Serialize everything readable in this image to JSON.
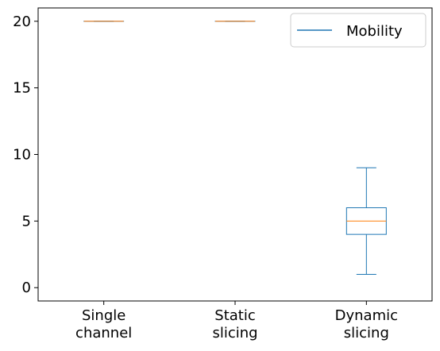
{
  "chart_data": {
    "type": "box",
    "title": "",
    "xlabel": "",
    "ylabel": "",
    "categories": [
      [
        "Single",
        "channel"
      ],
      [
        "Static",
        "slicing"
      ],
      [
        "Dynamic",
        "slicing"
      ]
    ],
    "ylim": [
      -1,
      21
    ],
    "y_ticks": [
      0,
      5,
      10,
      15,
      20
    ],
    "grid": false,
    "legend": {
      "position": "top-right",
      "entries": [
        "Mobility"
      ]
    },
    "series": [
      {
        "name": "Mobility",
        "boxes": [
          {
            "category": "Single channel",
            "min": 20,
            "q1": 20,
            "median": 20,
            "q3": 20,
            "max": 20
          },
          {
            "category": "Static slicing",
            "min": 20,
            "q1": 20,
            "median": 20,
            "q3": 20,
            "max": 20
          },
          {
            "category": "Dynamic slicing",
            "min": 1,
            "q1": 4,
            "median": 5,
            "q3": 6,
            "max": 9
          }
        ]
      }
    ],
    "colors": {
      "box": "#1f77b4",
      "median": "#ff7f0e",
      "axes": "#000000"
    }
  }
}
